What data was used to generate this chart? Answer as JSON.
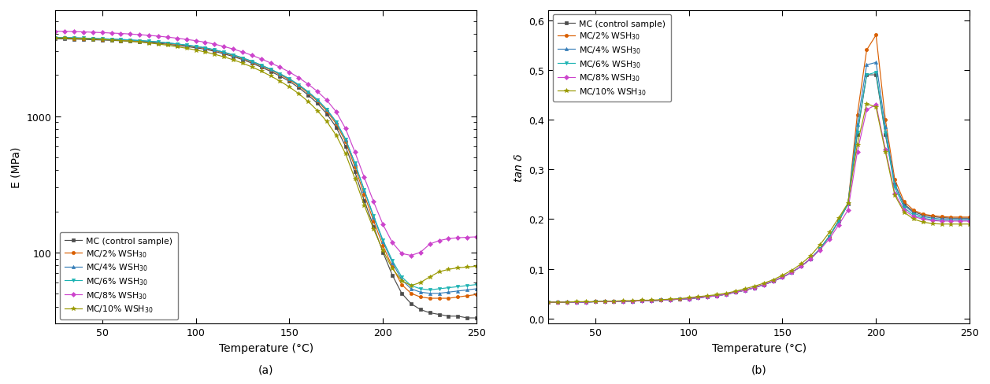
{
  "temp": [
    25,
    30,
    35,
    40,
    45,
    50,
    55,
    60,
    65,
    70,
    75,
    80,
    85,
    90,
    95,
    100,
    105,
    110,
    115,
    120,
    125,
    130,
    135,
    140,
    145,
    150,
    155,
    160,
    165,
    170,
    175,
    180,
    185,
    190,
    195,
    200,
    205,
    210,
    215,
    220,
    225,
    230,
    235,
    240,
    245,
    250
  ],
  "series_colors": [
    "#4d4d4d",
    "#d95f02",
    "#377eb8",
    "#1db3b3",
    "#cc44cc",
    "#999900"
  ],
  "series_labels": [
    "MC (control sample)",
    "MC/2% WSH$_{30}$",
    "MC/4% WSH$_{30}$",
    "MC/6% WSH$_{30}$",
    "MC/8% WSH$_{30}$",
    "MC/10% WSH$_{30}$"
  ],
  "series_markers": [
    "s",
    "o",
    "^",
    "v",
    "D",
    "*"
  ],
  "series_markersizes": [
    3.0,
    3.0,
    3.0,
    3.0,
    3.0,
    4.0
  ],
  "E_data": [
    [
      3700,
      3690,
      3680,
      3660,
      3640,
      3620,
      3600,
      3575,
      3545,
      3510,
      3470,
      3425,
      3370,
      3310,
      3245,
      3175,
      3100,
      2990,
      2870,
      2740,
      2600,
      2450,
      2290,
      2130,
      1970,
      1800,
      1620,
      1430,
      1240,
      1040,
      830,
      600,
      390,
      240,
      155,
      100,
      68,
      50,
      42,
      38,
      36,
      35,
      34,
      34,
      33,
      33
    ],
    [
      3750,
      3740,
      3730,
      3710,
      3690,
      3670,
      3650,
      3625,
      3595,
      3560,
      3520,
      3475,
      3420,
      3360,
      3295,
      3225,
      3150,
      3040,
      2920,
      2790,
      2650,
      2500,
      2340,
      2180,
      2020,
      1850,
      1670,
      1480,
      1290,
      1090,
      880,
      650,
      425,
      265,
      170,
      112,
      78,
      58,
      50,
      47,
      46,
      46,
      46,
      47,
      48,
      49
    ],
    [
      3780,
      3770,
      3760,
      3740,
      3720,
      3700,
      3678,
      3653,
      3623,
      3588,
      3548,
      3503,
      3448,
      3388,
      3323,
      3253,
      3178,
      3068,
      2948,
      2818,
      2678,
      2528,
      2368,
      2208,
      2048,
      1878,
      1698,
      1508,
      1318,
      1118,
      908,
      678,
      450,
      285,
      182,
      120,
      84,
      63,
      54,
      51,
      50,
      50,
      51,
      52,
      53,
      54
    ],
    [
      3780,
      3770,
      3760,
      3740,
      3720,
      3700,
      3678,
      3653,
      3623,
      3588,
      3548,
      3503,
      3448,
      3388,
      3323,
      3253,
      3178,
      3068,
      2948,
      2818,
      2678,
      2528,
      2368,
      2208,
      2048,
      1878,
      1698,
      1508,
      1318,
      1118,
      908,
      678,
      452,
      288,
      185,
      123,
      87,
      66,
      57,
      54,
      53,
      54,
      55,
      56,
      57,
      58
    ],
    [
      4200,
      4190,
      4175,
      4155,
      4130,
      4105,
      4075,
      4045,
      4008,
      3965,
      3918,
      3865,
      3803,
      3735,
      3660,
      3580,
      3490,
      3378,
      3248,
      3108,
      2958,
      2798,
      2628,
      2458,
      2288,
      2108,
      1918,
      1718,
      1518,
      1308,
      1078,
      810,
      545,
      355,
      235,
      160,
      118,
      98,
      95,
      100,
      115,
      122,
      126,
      128,
      129,
      130
    ],
    [
      3750,
      3740,
      3728,
      3708,
      3685,
      3658,
      3625,
      3588,
      3545,
      3498,
      3445,
      3385,
      3315,
      3235,
      3150,
      3060,
      2960,
      2848,
      2725,
      2593,
      2450,
      2298,
      2138,
      1973,
      1808,
      1638,
      1462,
      1282,
      1098,
      913,
      723,
      530,
      348,
      222,
      148,
      103,
      76,
      62,
      57,
      60,
      66,
      72,
      75,
      77,
      78,
      79
    ]
  ],
  "tand_data": [
    [
      0.033,
      0.033,
      0.033,
      0.033,
      0.033,
      0.034,
      0.034,
      0.034,
      0.035,
      0.035,
      0.036,
      0.036,
      0.037,
      0.038,
      0.039,
      0.04,
      0.042,
      0.044,
      0.046,
      0.049,
      0.053,
      0.057,
      0.062,
      0.068,
      0.075,
      0.083,
      0.093,
      0.105,
      0.12,
      0.14,
      0.165,
      0.196,
      0.23,
      0.37,
      0.49,
      0.49,
      0.37,
      0.27,
      0.23,
      0.215,
      0.208,
      0.205,
      0.203,
      0.202,
      0.202,
      0.202
    ],
    [
      0.033,
      0.033,
      0.033,
      0.033,
      0.033,
      0.034,
      0.034,
      0.034,
      0.035,
      0.035,
      0.036,
      0.036,
      0.037,
      0.038,
      0.039,
      0.04,
      0.042,
      0.044,
      0.046,
      0.049,
      0.053,
      0.057,
      0.062,
      0.068,
      0.075,
      0.083,
      0.093,
      0.105,
      0.12,
      0.14,
      0.165,
      0.196,
      0.23,
      0.41,
      0.54,
      0.57,
      0.4,
      0.28,
      0.235,
      0.218,
      0.21,
      0.207,
      0.205,
      0.204,
      0.204,
      0.204
    ],
    [
      0.033,
      0.033,
      0.033,
      0.033,
      0.033,
      0.034,
      0.034,
      0.034,
      0.035,
      0.035,
      0.036,
      0.036,
      0.037,
      0.038,
      0.039,
      0.04,
      0.042,
      0.044,
      0.046,
      0.049,
      0.053,
      0.057,
      0.062,
      0.068,
      0.075,
      0.083,
      0.093,
      0.105,
      0.12,
      0.14,
      0.165,
      0.196,
      0.23,
      0.39,
      0.51,
      0.515,
      0.385,
      0.27,
      0.228,
      0.212,
      0.205,
      0.202,
      0.2,
      0.2,
      0.2,
      0.2
    ],
    [
      0.033,
      0.033,
      0.033,
      0.033,
      0.033,
      0.034,
      0.034,
      0.034,
      0.035,
      0.035,
      0.036,
      0.036,
      0.037,
      0.038,
      0.039,
      0.04,
      0.042,
      0.044,
      0.046,
      0.049,
      0.053,
      0.057,
      0.062,
      0.068,
      0.075,
      0.083,
      0.093,
      0.105,
      0.12,
      0.14,
      0.165,
      0.196,
      0.23,
      0.375,
      0.49,
      0.495,
      0.373,
      0.264,
      0.223,
      0.208,
      0.202,
      0.199,
      0.197,
      0.197,
      0.197,
      0.197
    ],
    [
      0.033,
      0.033,
      0.033,
      0.033,
      0.033,
      0.034,
      0.034,
      0.034,
      0.035,
      0.035,
      0.036,
      0.036,
      0.037,
      0.038,
      0.039,
      0.04,
      0.042,
      0.044,
      0.046,
      0.049,
      0.053,
      0.057,
      0.062,
      0.068,
      0.075,
      0.083,
      0.093,
      0.105,
      0.12,
      0.138,
      0.16,
      0.188,
      0.218,
      0.335,
      0.42,
      0.43,
      0.34,
      0.252,
      0.218,
      0.205,
      0.2,
      0.197,
      0.196,
      0.196,
      0.196,
      0.196
    ],
    [
      0.033,
      0.033,
      0.033,
      0.034,
      0.034,
      0.034,
      0.035,
      0.035,
      0.036,
      0.036,
      0.037,
      0.037,
      0.038,
      0.039,
      0.04,
      0.042,
      0.044,
      0.046,
      0.048,
      0.051,
      0.055,
      0.06,
      0.065,
      0.071,
      0.078,
      0.087,
      0.097,
      0.11,
      0.126,
      0.148,
      0.173,
      0.202,
      0.232,
      0.35,
      0.432,
      0.425,
      0.335,
      0.248,
      0.214,
      0.2,
      0.194,
      0.191,
      0.19,
      0.19,
      0.19,
      0.19
    ]
  ],
  "xlabel": "Temperature (°C)",
  "ylabel_a": "E (MPa)",
  "ylabel_b": "tan δ",
  "label_a": "(a)",
  "label_b": "(b)",
  "xlim": [
    25,
    250
  ],
  "xticks": [
    50,
    100,
    150,
    200,
    250
  ],
  "ylim_a_log": [
    30,
    6000
  ],
  "ylim_b": [
    0.0,
    0.6
  ],
  "yticks_b": [
    0.0,
    0.1,
    0.2,
    0.3,
    0.4,
    0.5,
    0.6
  ],
  "yticklabels_b": [
    "0,0",
    "0,1",
    "0,2",
    "0,3",
    "0,4",
    "0,5",
    "0,6"
  ]
}
